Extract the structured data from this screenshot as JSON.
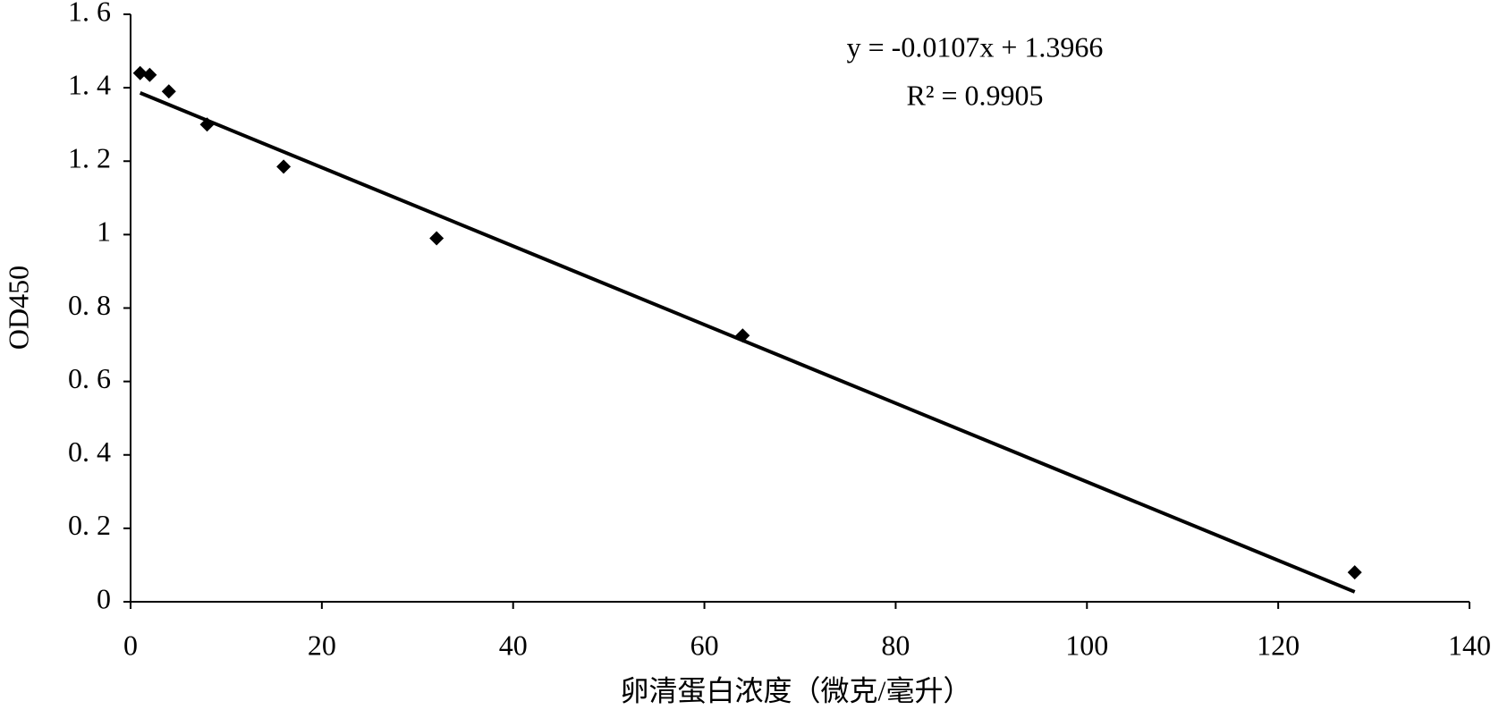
{
  "chart_data": {
    "type": "scatter",
    "x_label": "卵清蛋白浓度（微克/毫升）",
    "y_label": "OD450",
    "equation": "y = -0.0107x + 1.3966",
    "r_squared": "R² = 0.9905",
    "color": "#000000",
    "x": [
      1,
      2,
      4,
      8,
      16,
      32,
      64,
      128
    ],
    "values": [
      1.44,
      1.435,
      1.39,
      1.3,
      1.185,
      0.99,
      0.725,
      0.08
    ],
    "trendline": {
      "x": [
        1,
        128
      ],
      "values": [
        1.386,
        0.027
      ]
    },
    "xlim": [
      0,
      140
    ],
    "xticks": [
      0,
      20,
      40,
      60,
      80,
      100,
      120,
      140
    ],
    "ylim": [
      0,
      1.6
    ],
    "yticks": [
      {
        "value": 0,
        "label": "0"
      },
      {
        "value": 0.2,
        "label": "0. 2"
      },
      {
        "value": 0.4,
        "label": "0. 4"
      },
      {
        "value": 0.6,
        "label": "0. 6"
      },
      {
        "value": 0.8,
        "label": "0. 8"
      },
      {
        "value": 1,
        "label": "1"
      },
      {
        "value": 1.2,
        "label": "1. 2"
      },
      {
        "value": 1.4,
        "label": "1. 4"
      },
      {
        "value": 1.6,
        "label": "1. 6"
      }
    ],
    "grid": false
  }
}
